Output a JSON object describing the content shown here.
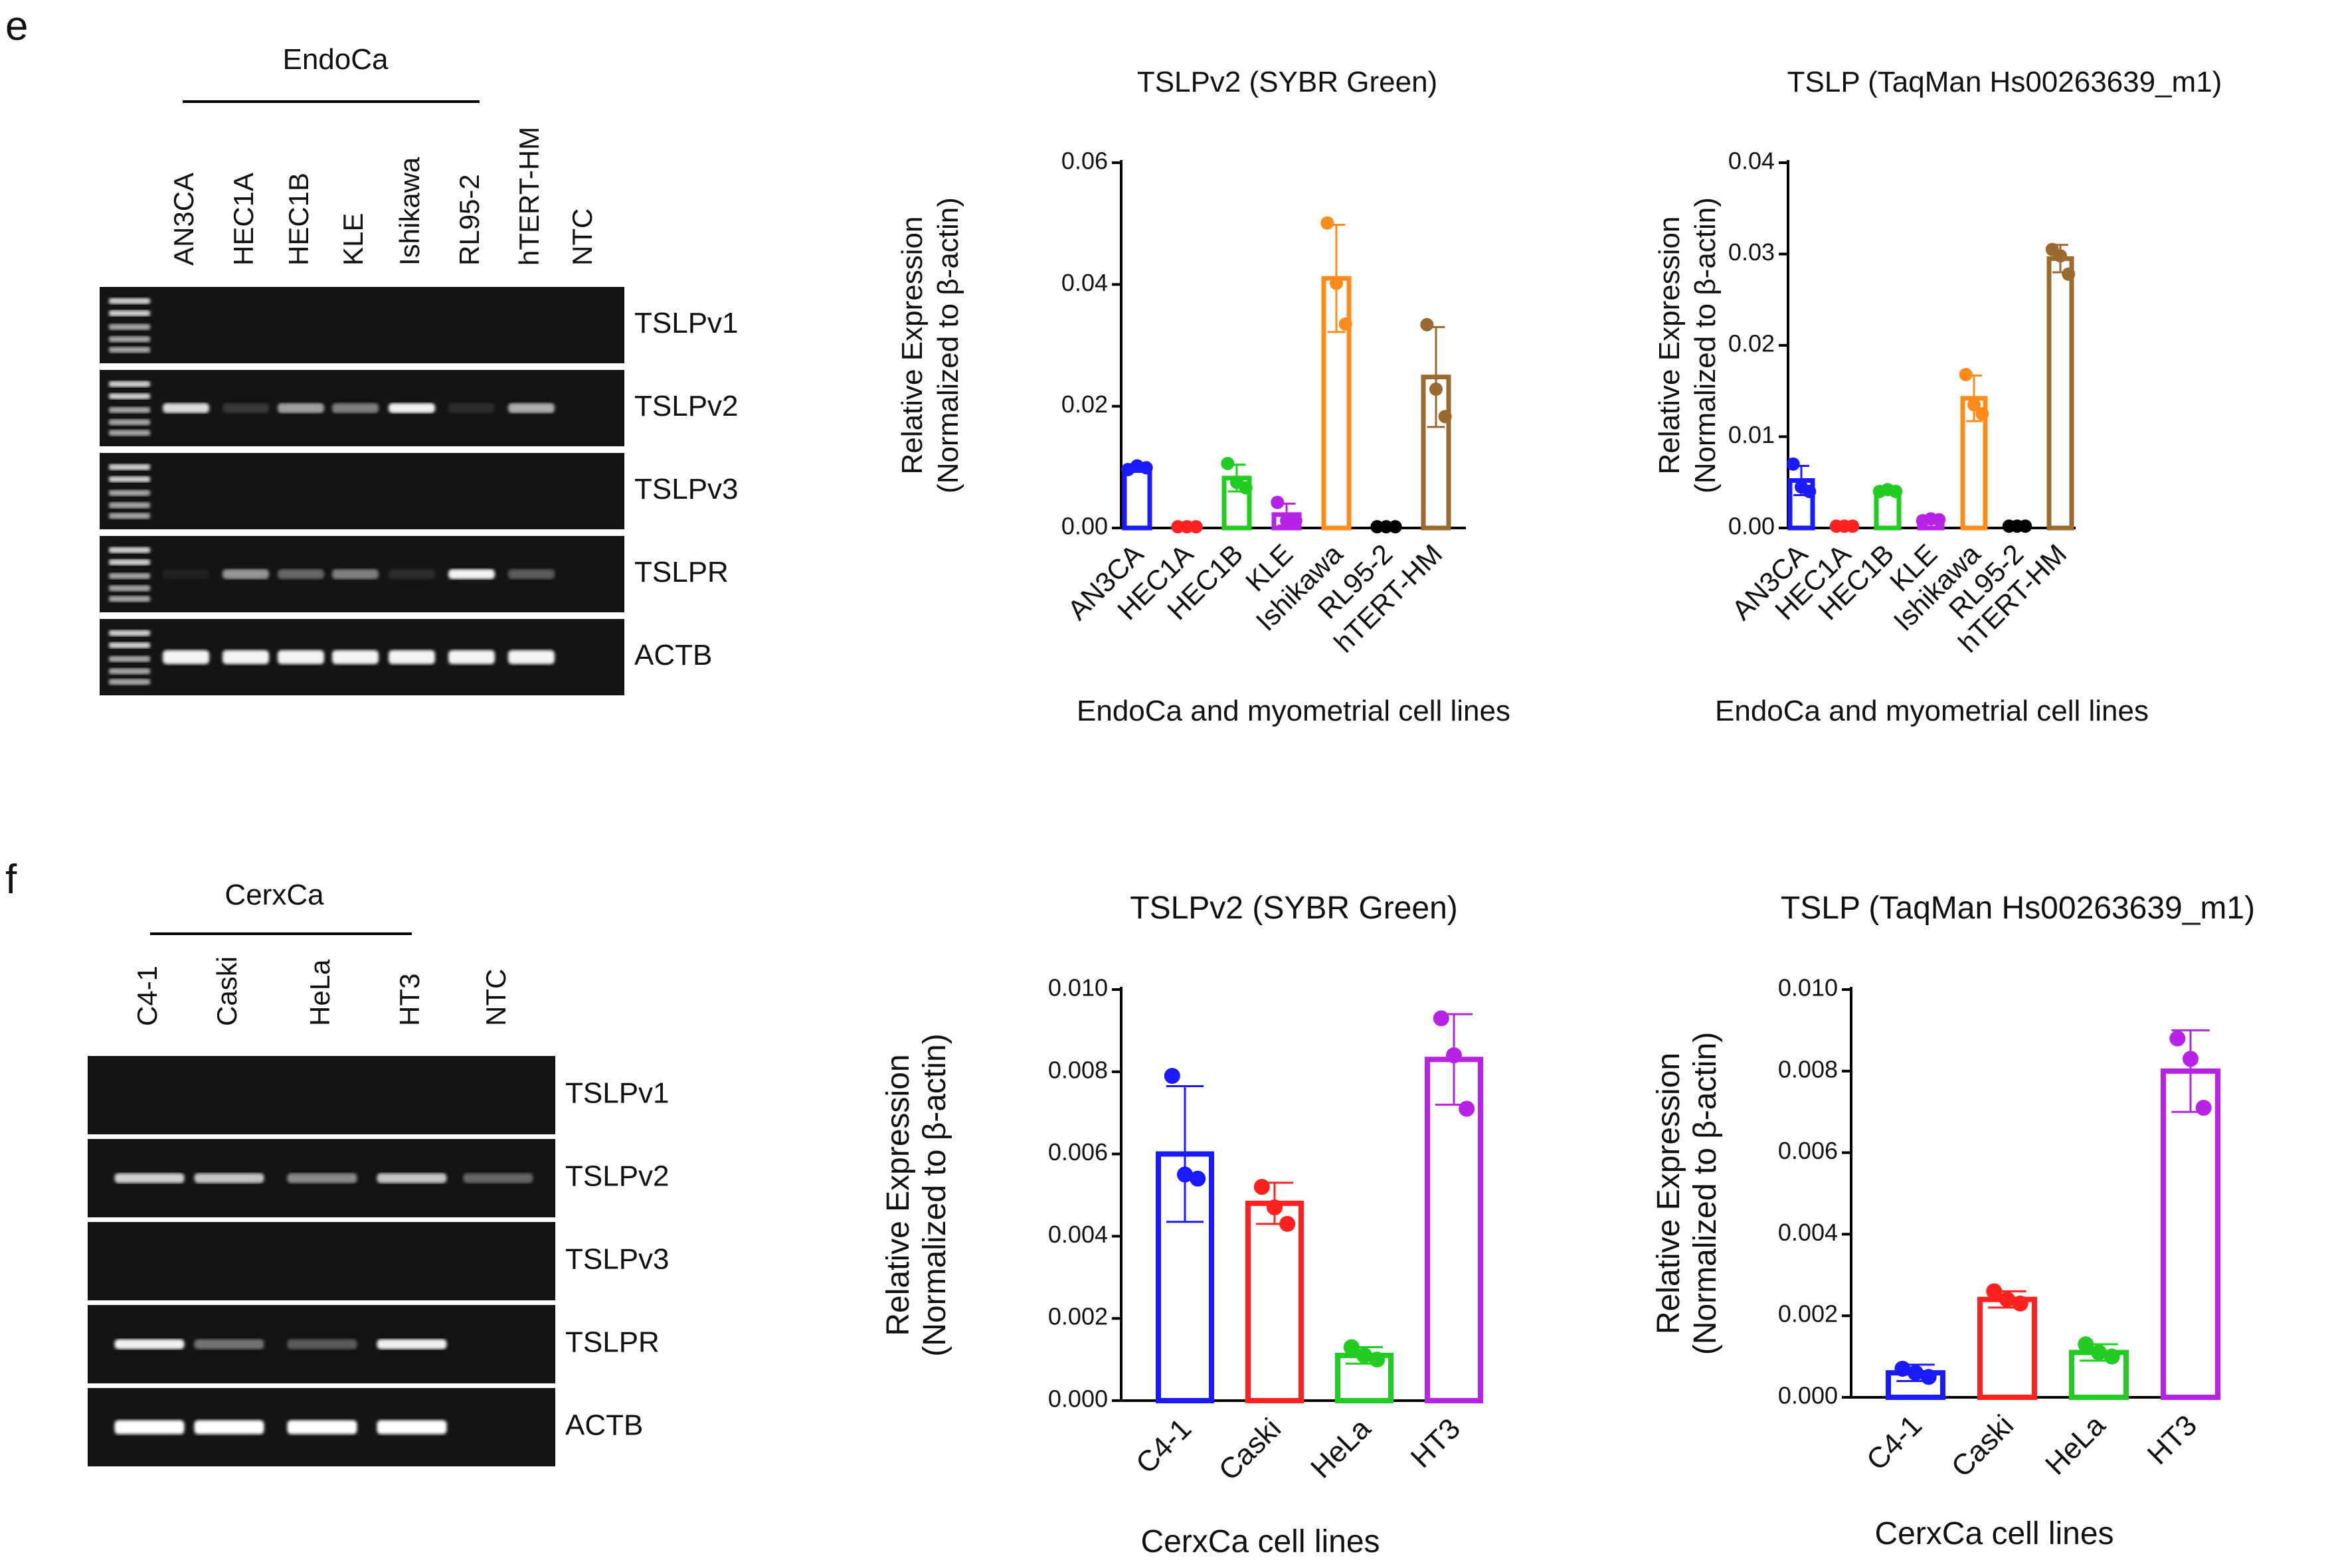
{
  "panel_e": {
    "letter": "e",
    "gel": {
      "group_label": "EndoCa",
      "lanes": [
        "AN3CA",
        "HEC1A",
        "HEC1B",
        "KLE",
        "Ishikawa",
        "RL95-2",
        "hTERT-HM",
        "NTC"
      ],
      "genes": [
        "TSLPv1",
        "TSLPv2",
        "TSLPv3",
        "TSLPR",
        "ACTB"
      ],
      "band_intensity": [
        [
          0,
          0,
          0,
          0,
          0,
          0,
          0,
          0
        ],
        [
          0.85,
          0.15,
          0.6,
          0.45,
          0.95,
          0.1,
          0.65,
          0
        ],
        [
          0,
          0,
          0,
          0,
          0,
          0,
          0,
          0
        ],
        [
          0.05,
          0.55,
          0.35,
          0.45,
          0.1,
          0.95,
          0.3,
          0
        ],
        [
          0.95,
          0.95,
          0.95,
          0.95,
          0.95,
          0.95,
          0.95,
          0
        ]
      ]
    }
  },
  "panel_f": {
    "letter": "f",
    "gel": {
      "group_label": "CerxCa",
      "lanes": [
        "C4-1",
        "Caski",
        "HeLa",
        "HT3",
        "NTC"
      ],
      "genes": [
        "TSLPv1",
        "TSLPv2",
        "TSLPv3",
        "TSLPR",
        "ACTB"
      ],
      "band_intensity": [
        [
          0,
          0,
          0,
          0,
          0
        ],
        [
          0.8,
          0.75,
          0.5,
          0.75,
          0.35
        ],
        [
          0,
          0,
          0,
          0,
          0
        ],
        [
          0.95,
          0.4,
          0.3,
          0.95,
          0
        ],
        [
          1,
          1,
          1,
          1,
          0
        ]
      ]
    }
  },
  "chart_data": [
    {
      "type": "bar",
      "panel": "e",
      "title": "TSLPv2 (SYBR Green)",
      "ylabel": "Relative Expression",
      "ylabel2": "(Normalized to β-actin)",
      "xlabel": "EndoCa and myometrial cell lines",
      "categories": [
        "AN3CA",
        "HEC1A",
        "HEC1B",
        "KLE",
        "Ishikawa",
        "RL95-2",
        "hTERT-HM"
      ],
      "values": [
        0.0098,
        0.0002,
        0.0082,
        0.0022,
        0.041,
        0.0002,
        0.0248
      ],
      "errors": [
        0.0006,
        0.0001,
        0.0022,
        0.0018,
        0.0088,
        0.0001,
        0.0082
      ],
      "points": [
        [
          0.0096,
          0.0102,
          0.0099
        ],
        [
          0.0002,
          0.0002,
          0.0002
        ],
        [
          0.0106,
          0.0075,
          0.0066
        ],
        [
          0.0042,
          0.0012,
          0.0012
        ],
        [
          0.0501,
          0.0402,
          0.0335
        ],
        [
          0.0002,
          0.0002,
          0.0002
        ],
        [
          0.0334,
          0.0228,
          0.0183
        ]
      ],
      "colors": [
        "#1a1aff",
        "#ff2020",
        "#22cc22",
        "#b722e6",
        "#ff8c1a",
        "#000000",
        "#9b6a2e"
      ],
      "ylim": [
        0,
        0.06
      ],
      "yticks": [
        "0.00",
        "0.02",
        "0.04",
        "0.06"
      ]
    },
    {
      "type": "bar",
      "panel": "e",
      "title": "TSLP  (TaqMan Hs00263639_m1)",
      "ylabel": "Relative Expression",
      "ylabel2": "(Normalized to β-actin)",
      "xlabel": "EndoCa and myometrial cell lines",
      "categories": [
        "AN3CA",
        "HEC1A",
        "HEC1B",
        "KLE",
        "Ishikawa",
        "RL95-2",
        "hTERT-HM"
      ],
      "values": [
        0.0052,
        0.0002,
        0.004,
        0.0009,
        0.0142,
        0.0002,
        0.0295
      ],
      "errors": [
        0.0016,
        0.0001,
        0.0003,
        0.0003,
        0.0025,
        0.0001,
        0.0015
      ],
      "points": [
        [
          0.007,
          0.0045,
          0.004
        ],
        [
          0.0002,
          0.0002,
          0.0002
        ],
        [
          0.004,
          0.0042,
          0.004
        ],
        [
          0.0008,
          0.001,
          0.0009
        ],
        [
          0.0168,
          0.0135,
          0.0125
        ],
        [
          0.0002,
          0.0002,
          0.0002
        ],
        [
          0.0305,
          0.0298,
          0.0278
        ]
      ],
      "colors": [
        "#1a1aff",
        "#ff2020",
        "#22cc22",
        "#b722e6",
        "#ff8c1a",
        "#000000",
        "#9b6a2e"
      ],
      "ylim": [
        0,
        0.04
      ],
      "yticks": [
        "0.00",
        "0.01",
        "0.02",
        "0.03",
        "0.04"
      ]
    },
    {
      "type": "bar",
      "panel": "f",
      "title": "TSLPv2 (SYBR Green)",
      "ylabel": "Relative Expression",
      "ylabel2": "(Normalized to β-actin)",
      "xlabel": "CerxCa cell lines",
      "categories": [
        "C4-1",
        "Caski",
        "HeLa",
        "HT3"
      ],
      "values": [
        0.006,
        0.0048,
        0.0011,
        0.0083
      ],
      "errors": [
        0.00165,
        0.0005,
        0.0002,
        0.0011
      ],
      "points": [
        [
          0.0079,
          0.0055,
          0.0054
        ],
        [
          0.0052,
          0.0047,
          0.0043
        ],
        [
          0.0013,
          0.0011,
          0.001
        ],
        [
          0.0093,
          0.0084,
          0.0071
        ]
      ],
      "colors": [
        "#1a1aff",
        "#ff2020",
        "#22cc22",
        "#b722e6"
      ],
      "ylim": [
        0,
        0.01
      ],
      "yticks": [
        "0.000",
        "0.002",
        "0.004",
        "0.006",
        "0.008",
        "0.010"
      ]
    },
    {
      "type": "bar",
      "panel": "f",
      "title": "TSLP (TaqMan Hs00263639_m1)",
      "ylabel": "Relative Expression",
      "ylabel2": "(Normalized to β-actin)",
      "xlabel": "CerxCa cell lines",
      "categories": [
        "C4-1",
        "Caski",
        "HeLa",
        "HT3"
      ],
      "values": [
        0.0006,
        0.0024,
        0.0011,
        0.008
      ],
      "errors": [
        0.0002,
        0.0002,
        0.0002,
        0.001
      ],
      "points": [
        [
          0.0007,
          0.0006,
          0.0005
        ],
        [
          0.0026,
          0.0024,
          0.0023
        ],
        [
          0.0013,
          0.0011,
          0.001
        ],
        [
          0.0088,
          0.0083,
          0.0071
        ]
      ],
      "colors": [
        "#1a1aff",
        "#ff2020",
        "#22cc22",
        "#b722e6"
      ],
      "ylim": [
        0,
        0.01
      ],
      "yticks": [
        "0.000",
        "0.002",
        "0.004",
        "0.006",
        "0.008",
        "0.010"
      ]
    }
  ]
}
